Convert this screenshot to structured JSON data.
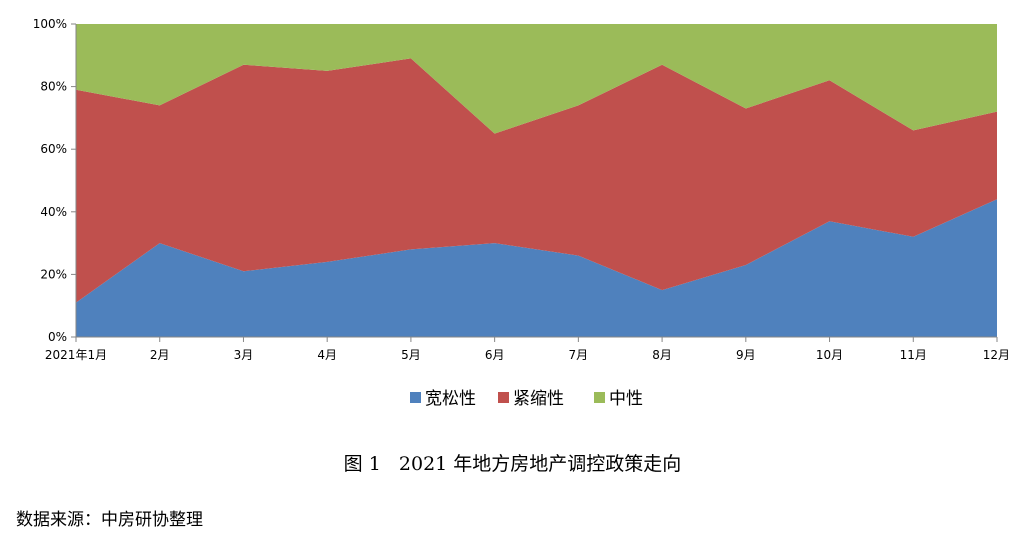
{
  "chart_data": {
    "type": "area",
    "stacked": "percent",
    "categories": [
      "2021年1月",
      "2月",
      "3月",
      "4月",
      "5月",
      "6月",
      "7月",
      "8月",
      "9月",
      "10月",
      "11月",
      "12月"
    ],
    "series": [
      {
        "name": "宽松性",
        "color": "#4F81BD",
        "values": [
          11,
          30,
          21,
          24,
          28,
          30,
          26,
          15,
          23,
          37,
          32,
          44
        ]
      },
      {
        "name": "紧缩性",
        "color": "#C0504D",
        "values": [
          68,
          44,
          66,
          61,
          61,
          35,
          48,
          72,
          50,
          45,
          34,
          28
        ]
      },
      {
        "name": "中性",
        "color": "#9BBB59",
        "values": [
          21,
          26,
          13,
          15,
          11,
          35,
          26,
          13,
          27,
          18,
          34,
          28
        ]
      }
    ],
    "y_ticks": [
      "0%",
      "20%",
      "40%",
      "60%",
      "80%",
      "100%"
    ],
    "ylim": [
      0,
      100
    ],
    "grid": false,
    "legend": "bottom"
  },
  "caption": "图 1   2021 年地方房地产调控政策走向",
  "source": "数据来源：中房研协整理"
}
